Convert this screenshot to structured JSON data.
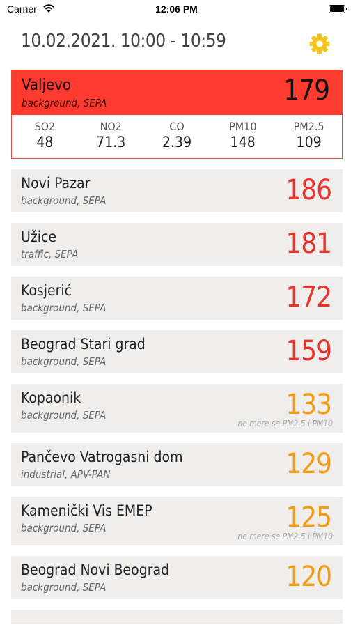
{
  "status_bar": {
    "carrier": "Carrier",
    "time": "12:06 PM"
  },
  "header": {
    "title": "10.02.2021. 10:00 - 10:59",
    "settings_icon": "gear-icon"
  },
  "colors": {
    "bad": "#e8322b",
    "very_bad_bg": "#ff3b30",
    "moderate": "#f39c12",
    "gear": "#f5c518"
  },
  "featured": {
    "name": "Valjevo",
    "subtitle": "background, SEPA",
    "value": "179",
    "pollutants": [
      {
        "name": "SO2",
        "value": "48"
      },
      {
        "name": "NO2",
        "value": "71.3"
      },
      {
        "name": "CO",
        "value": "2.39"
      },
      {
        "name": "PM10",
        "value": "148"
      },
      {
        "name": "PM2.5",
        "value": "109"
      }
    ]
  },
  "stations": [
    {
      "name": "Novi Pazar",
      "subtitle": "background, SEPA",
      "value": "186",
      "level": "red",
      "note": ""
    },
    {
      "name": "Užice",
      "subtitle": "traffic, SEPA",
      "value": "181",
      "level": "red",
      "note": ""
    },
    {
      "name": "Kosjerić",
      "subtitle": "background, SEPA",
      "value": "172",
      "level": "red",
      "note": ""
    },
    {
      "name": "Beograd Stari grad",
      "subtitle": "background, SEPA",
      "value": "159",
      "level": "red",
      "note": ""
    },
    {
      "name": "Kopaonik",
      "subtitle": "background, SEPA",
      "value": "133",
      "level": "orange",
      "note": "ne mere se PM2.5 i PM10"
    },
    {
      "name": "Pančevo Vatrogasni dom",
      "subtitle": "industrial, APV-PAN",
      "value": "129",
      "level": "orange",
      "note": ""
    },
    {
      "name": "Kamenički Vis EMEP",
      "subtitle": "background, SEPA",
      "value": "125",
      "level": "orange",
      "note": "ne mere se PM2.5 i PM10"
    },
    {
      "name": "Beograd Novi Beograd",
      "subtitle": "background, SEPA",
      "value": "120",
      "level": "orange",
      "note": ""
    }
  ]
}
